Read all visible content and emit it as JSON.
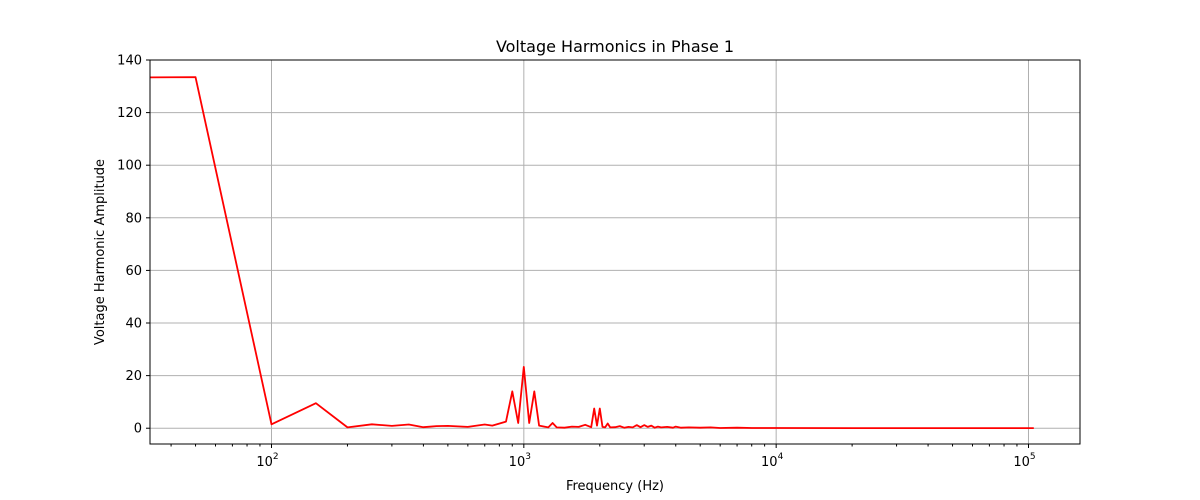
{
  "chart_data": {
    "type": "line",
    "title": "Voltage Harmonics in Phase 1",
    "xlabel": "Frequency (Hz)",
    "ylabel": "Voltage Harmonic Amplitude",
    "xscale": "log",
    "xlim": [
      33,
      160000
    ],
    "ylim": [
      -6,
      140
    ],
    "grid": true,
    "y_ticks": [
      0,
      20,
      40,
      60,
      80,
      100,
      120,
      140
    ],
    "x_ticks": [
      {
        "base": "10",
        "exp": "2",
        "value": 100
      },
      {
        "base": "10",
        "exp": "3",
        "value": 1000
      },
      {
        "base": "10",
        "exp": "4",
        "value": 10000
      },
      {
        "base": "10",
        "exp": "5",
        "value": 100000
      }
    ],
    "series": [
      {
        "color": "#ff0000",
        "x": [
          33,
          50,
          100,
          150,
          200,
          250,
          300,
          350,
          400,
          450,
          500,
          600,
          700,
          750,
          850,
          900,
          950,
          1000,
          1050,
          1100,
          1150,
          1250,
          1300,
          1350,
          1450,
          1550,
          1650,
          1750,
          1850,
          1900,
          1950,
          2000,
          2050,
          2100,
          2150,
          2200,
          2300,
          2400,
          2500,
          2600,
          2700,
          2800,
          2900,
          3000,
          3100,
          3200,
          3300,
          3400,
          3500,
          3700,
          3900,
          4000,
          4200,
          4500,
          5000,
          5500,
          6000,
          7000,
          8000,
          10000,
          20000,
          50000,
          105000
        ],
        "y": [
          133.4,
          133.5,
          1.5,
          9.5,
          0.3,
          1.5,
          0.9,
          1.4,
          0.4,
          0.8,
          0.9,
          0.5,
          1.4,
          1.0,
          2.5,
          14.0,
          2.0,
          23.3,
          2.0,
          14.0,
          1.0,
          0.3,
          2.0,
          0.3,
          0.2,
          0.6,
          0.5,
          1.3,
          0.4,
          7.5,
          1.0,
          7.5,
          0.5,
          0.3,
          1.8,
          0.3,
          0.4,
          0.8,
          0.2,
          0.5,
          0.3,
          1.2,
          0.4,
          1.2,
          0.5,
          1.0,
          0.2,
          0.6,
          0.3,
          0.5,
          0.2,
          0.6,
          0.2,
          0.3,
          0.2,
          0.3,
          0.1,
          0.2,
          0.1,
          0.1,
          0.05,
          0.05,
          0.05
        ]
      }
    ]
  }
}
